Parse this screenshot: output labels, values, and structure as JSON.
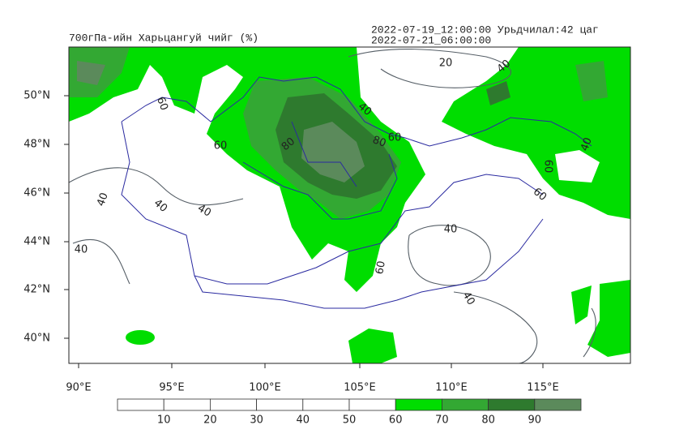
{
  "header": {
    "title": "700гПа-ийн Харьцангуй чийг (%)",
    "init": "2022-07-19_12:00:00 Урьдчилал:42 цаг",
    "valid": "2022-07-21_06:00:00"
  },
  "lat_labels": [
    "50°N",
    "48°N",
    "46°N",
    "44°N",
    "42°N",
    "40°N"
  ],
  "lon_labels": [
    "90°E",
    "95°E",
    "100°E",
    "105°E",
    "110°E",
    "115°E"
  ],
  "contour_labels": [
    "60",
    "60",
    "40",
    "40",
    "40",
    "40",
    "80",
    "80",
    "60",
    "40",
    "20",
    "40",
    "60",
    "40",
    "60",
    "40",
    "60",
    "40"
  ],
  "colorbar": {
    "labels": [
      "10",
      "20",
      "30",
      "40",
      "50",
      "60",
      "70",
      "80",
      "90"
    ],
    "colors": [
      "#ffffff",
      "#ffffff",
      "#ffffff",
      "#ffffff",
      "#ffffff",
      "#ffffff",
      "#00dd00",
      "#33a833",
      "#2e7a2e",
      "#5b8a5b"
    ]
  }
}
